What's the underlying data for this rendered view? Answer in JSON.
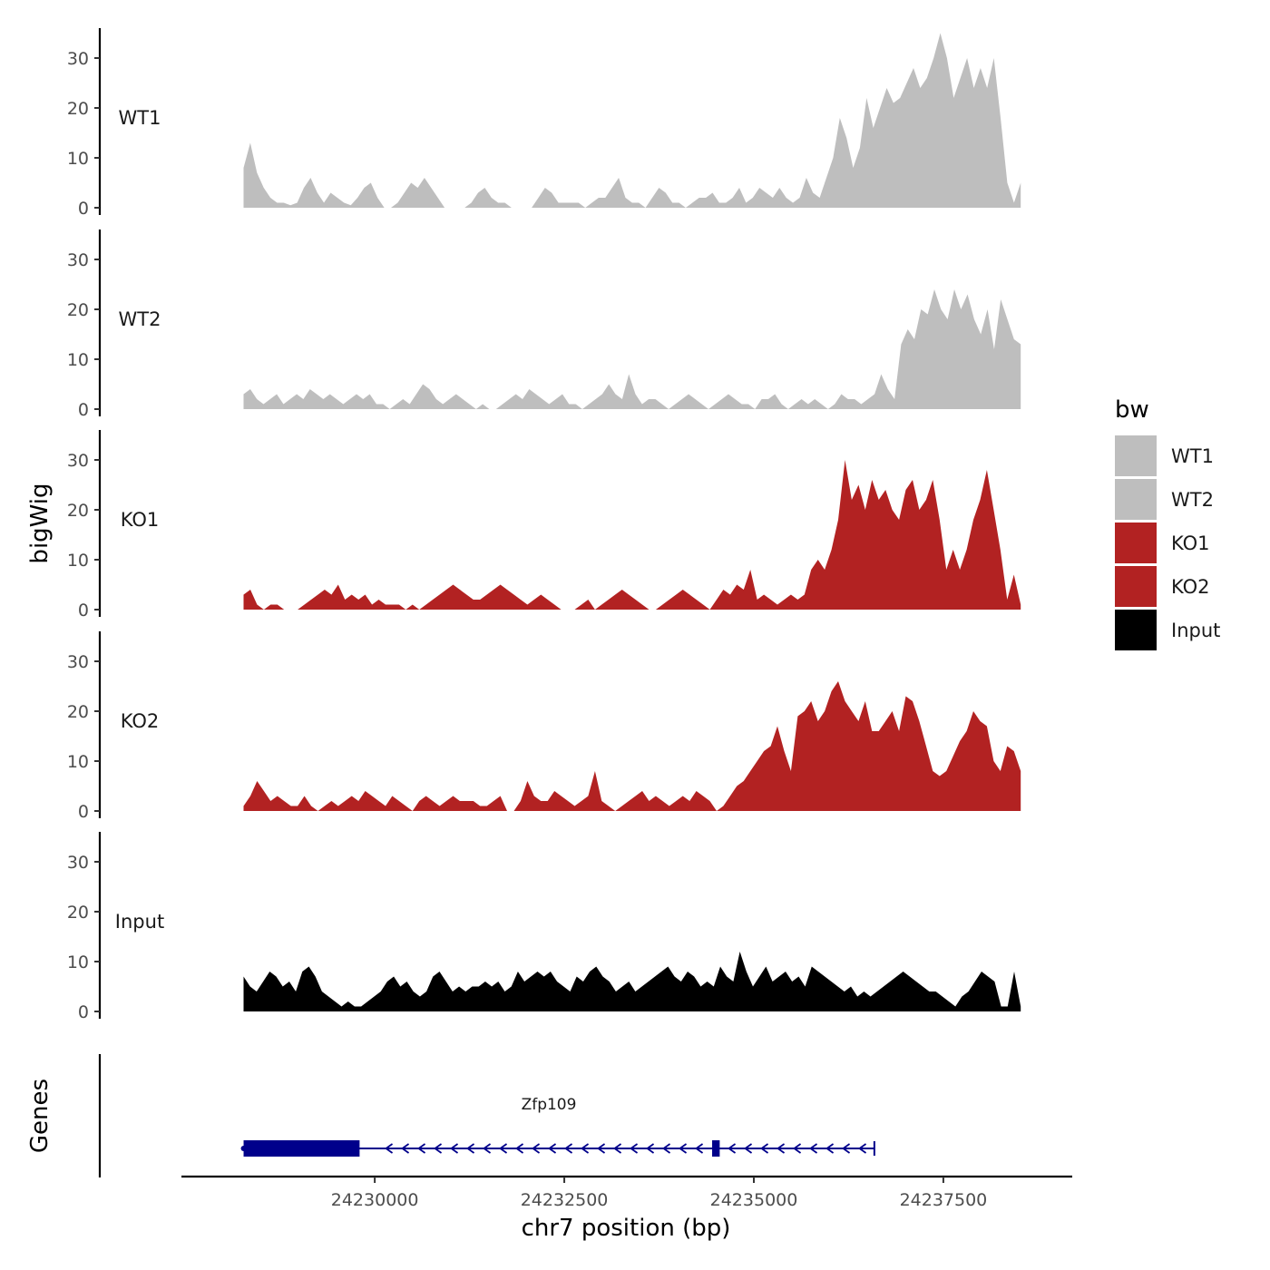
{
  "chart_data": {
    "type": "area",
    "title": "",
    "xlabel": "chr7 position (bp)",
    "ylabel": "bigWig",
    "genes_panel_label": "Genes",
    "xlim": [
      24227450,
      24239200
    ],
    "x_ticks": [
      24230000,
      24232500,
      24235000,
      24237500
    ],
    "x_tick_labels": [
      "24230000",
      "24232500",
      "24235000",
      "24237500"
    ],
    "ylim": [
      0,
      36
    ],
    "y_ticks": [
      0,
      10,
      20,
      30
    ],
    "y_tick_labels": [
      "0",
      "10",
      "20",
      "30"
    ],
    "track_start": 24228270,
    "track_end": 24238520,
    "legend": {
      "title": "bw",
      "entries": [
        {
          "label": "WT1",
          "color": "#bebebe"
        },
        {
          "label": "WT2",
          "color": "#bebebe"
        },
        {
          "label": "KO1",
          "color": "#b22222"
        },
        {
          "label": "KO2",
          "color": "#b22222"
        },
        {
          "label": "Input",
          "color": "#000000"
        }
      ]
    },
    "series": [
      {
        "name": "WT1",
        "color": "#bebebe",
        "values": [
          8,
          13,
          7,
          4,
          2,
          1,
          1,
          0.5,
          1,
          4,
          6,
          3,
          1,
          3,
          2,
          1,
          0.5,
          2,
          4,
          5,
          2,
          0,
          0,
          1,
          3,
          5,
          4,
          6,
          4,
          2,
          0,
          0,
          0,
          0,
          1,
          3,
          4,
          2,
          1,
          1,
          0,
          0,
          0,
          0,
          2,
          4,
          3,
          1,
          1,
          1,
          1,
          0,
          1,
          2,
          2,
          4,
          6,
          2,
          1,
          1,
          0,
          2,
          4,
          3,
          1,
          1,
          0,
          1,
          2,
          2,
          3,
          1,
          1,
          2,
          4,
          1,
          2,
          4,
          3,
          2,
          4,
          2,
          1,
          2,
          6,
          3,
          2,
          6,
          10,
          18,
          14,
          8,
          12,
          22,
          16,
          20,
          24,
          21,
          22,
          25,
          28,
          24,
          26,
          30,
          35,
          30,
          22,
          26,
          30,
          24,
          28,
          24,
          30,
          18,
          5,
          1,
          5
        ]
      },
      {
        "name": "WT2",
        "color": "#bebebe",
        "values": [
          3,
          4,
          2,
          1,
          2,
          3,
          1,
          2,
          3,
          2,
          4,
          3,
          2,
          3,
          2,
          1,
          2,
          3,
          2,
          3,
          1,
          1,
          0,
          1,
          2,
          1,
          3,
          5,
          4,
          2,
          1,
          2,
          3,
          2,
          1,
          0,
          1,
          0,
          0,
          1,
          2,
          3,
          2,
          4,
          3,
          2,
          1,
          2,
          3,
          1,
          1,
          0,
          1,
          2,
          3,
          5,
          3,
          2,
          7,
          3,
          1,
          2,
          2,
          1,
          0,
          1,
          2,
          3,
          2,
          1,
          0,
          1,
          2,
          3,
          2,
          1,
          1,
          0,
          2,
          2,
          3,
          1,
          0,
          1,
          2,
          1,
          2,
          1,
          0,
          1,
          3,
          2,
          2,
          1,
          2,
          3,
          7,
          4,
          2,
          13,
          16,
          14,
          20,
          19,
          24,
          20,
          18,
          24,
          20,
          23,
          18,
          15,
          20,
          12,
          22,
          18,
          14,
          13
        ]
      },
      {
        "name": "KO1",
        "color": "#b22222",
        "values": [
          3,
          4,
          1,
          0,
          1,
          1,
          0,
          0,
          0,
          1,
          2,
          3,
          4,
          3,
          5,
          2,
          3,
          2,
          3,
          1,
          2,
          1,
          1,
          1,
          0,
          1,
          0,
          1,
          2,
          3,
          4,
          5,
          4,
          3,
          2,
          2,
          3,
          4,
          5,
          4,
          3,
          2,
          1,
          2,
          3,
          2,
          1,
          0,
          0,
          0,
          1,
          2,
          0,
          1,
          2,
          3,
          4,
          3,
          2,
          1,
          0,
          0,
          1,
          2,
          3,
          4,
          3,
          2,
          1,
          0,
          2,
          4,
          3,
          5,
          4,
          8,
          2,
          3,
          2,
          1,
          2,
          3,
          2,
          3,
          8,
          10,
          8,
          12,
          18,
          30,
          22,
          25,
          20,
          26,
          22,
          24,
          20,
          18,
          24,
          26,
          20,
          22,
          26,
          18,
          8,
          12,
          8,
          12,
          18,
          22,
          28,
          20,
          12,
          2,
          7,
          1
        ]
      },
      {
        "name": "KO2",
        "color": "#b22222",
        "values": [
          1,
          3,
          6,
          4,
          2,
          3,
          2,
          1,
          1,
          3,
          1,
          0,
          1,
          2,
          1,
          2,
          3,
          2,
          4,
          3,
          2,
          1,
          3,
          2,
          1,
          0,
          2,
          3,
          2,
          1,
          2,
          3,
          2,
          2,
          2,
          1,
          1,
          2,
          3,
          0,
          0,
          2,
          6,
          3,
          2,
          2,
          4,
          3,
          2,
          1,
          2,
          3,
          8,
          2,
          1,
          0,
          1,
          2,
          3,
          4,
          2,
          3,
          2,
          1,
          2,
          3,
          2,
          4,
          3,
          2,
          0,
          1,
          3,
          5,
          6,
          8,
          10,
          12,
          13,
          17,
          12,
          8,
          19,
          20,
          22,
          18,
          20,
          24,
          26,
          22,
          20,
          18,
          22,
          16,
          16,
          18,
          20,
          16,
          23,
          22,
          18,
          13,
          8,
          7,
          8,
          11,
          14,
          16,
          20,
          18,
          17,
          10,
          8,
          13,
          12,
          8
        ]
      },
      {
        "name": "Input",
        "color": "#000000",
        "values": [
          7,
          5,
          4,
          6,
          8,
          7,
          5,
          6,
          4,
          8,
          9,
          7,
          4,
          3,
          2,
          1,
          2,
          1,
          1,
          2,
          3,
          4,
          6,
          7,
          5,
          6,
          4,
          3,
          4,
          7,
          8,
          6,
          4,
          5,
          4,
          5,
          5,
          6,
          5,
          6,
          4,
          5,
          8,
          6,
          7,
          8,
          7,
          8,
          6,
          5,
          4,
          7,
          6,
          8,
          9,
          7,
          6,
          4,
          5,
          6,
          4,
          5,
          6,
          7,
          8,
          9,
          7,
          6,
          8,
          7,
          5,
          6,
          5,
          9,
          7,
          6,
          12,
          8,
          5,
          7,
          9,
          6,
          7,
          8,
          6,
          7,
          5,
          9,
          8,
          7,
          6,
          5,
          4,
          5,
          3,
          4,
          3,
          4,
          5,
          6,
          7,
          8,
          7,
          6,
          5,
          4,
          4,
          3,
          2,
          1,
          3,
          4,
          6,
          8,
          7,
          6,
          1,
          1,
          8,
          1
        ]
      }
    ],
    "gene_track": {
      "gene_name": "Zfp109",
      "color": "#00008b",
      "strand": "-",
      "transcript_start": 24228270,
      "transcript_end": 24236590,
      "exons": [
        {
          "start": 24228270,
          "end": 24229800,
          "kind": "thick"
        },
        {
          "start": 24234450,
          "end": 24234550,
          "kind": "thick"
        }
      ]
    }
  }
}
